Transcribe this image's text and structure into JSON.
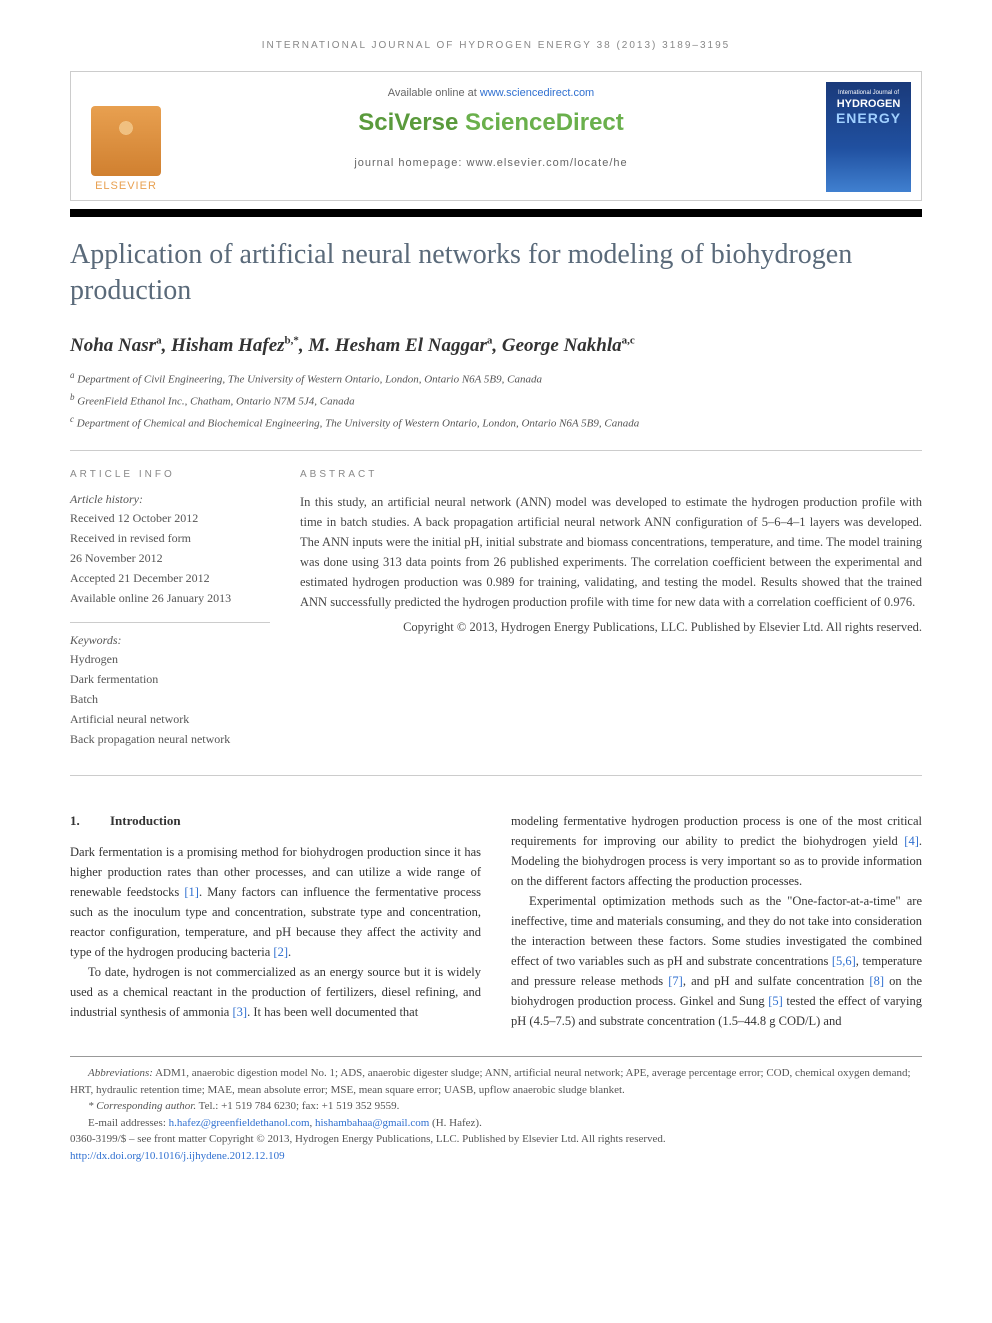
{
  "running_head": "INTERNATIONAL JOURNAL OF HYDROGEN ENERGY 38 (2013) 3189–3195",
  "header": {
    "available": "Available online at ",
    "available_link": "www.sciencedirect.com",
    "sciverse1": "SciVerse ",
    "sciverse2": "ScienceDirect",
    "homepage": "journal homepage: www.elsevier.com/locate/he",
    "elsevier": "ELSEVIER",
    "cover_line1": "International Journal of",
    "cover_line2": "HYDROGEN",
    "cover_line3": "ENERGY"
  },
  "title": "Application of artificial neural networks for modeling of biohydrogen production",
  "authors": {
    "a1_name": "Noha Nasr",
    "a1_sup": "a",
    "a2_name": "Hisham Hafez",
    "a2_sup": "b,*",
    "a3_name": "M. Hesham El Naggar",
    "a3_sup": "a",
    "a4_name": "George Nakhla",
    "a4_sup": "a,c"
  },
  "affiliations": {
    "aff1_sup": "a",
    "aff1": "Department of Civil Engineering, The University of Western Ontario, London, Ontario N6A 5B9, Canada",
    "aff2_sup": "b",
    "aff2": "GreenField Ethanol Inc., Chatham, Ontario N7M 5J4, Canada",
    "aff3_sup": "c",
    "aff3": "Department of Chemical and Biochemical Engineering, The University of Western Ontario, London, Ontario N6A 5B9, Canada"
  },
  "info": {
    "heading": "ARTICLE INFO",
    "history_label": "Article history:",
    "received": "Received 12 October 2012",
    "revised1": "Received in revised form",
    "revised2": "26 November 2012",
    "accepted": "Accepted 21 December 2012",
    "online": "Available online 26 January 2013",
    "keywords_label": "Keywords:",
    "kw1": "Hydrogen",
    "kw2": "Dark fermentation",
    "kw3": "Batch",
    "kw4": "Artificial neural network",
    "kw5": "Back propagation neural network"
  },
  "abstract": {
    "heading": "ABSTRACT",
    "text": "In this study, an artificial neural network (ANN) model was developed to estimate the hydrogen production profile with time in batch studies. A back propagation artificial neural network ANN configuration of 5–6–4–1 layers was developed. The ANN inputs were the initial pH, initial substrate and biomass concentrations, temperature, and time. The model training was done using 313 data points from 26 published experiments. The correlation coefficient between the experimental and estimated hydrogen production was 0.989 for training, validating, and testing the model. Results showed that the trained ANN successfully predicted the hydrogen production profile with time for new data with a correlation coefficient of 0.976.",
    "copyright": "Copyright © 2013, Hydrogen Energy Publications, LLC. Published by Elsevier Ltd. All rights reserved."
  },
  "body": {
    "heading_num": "1.",
    "heading_text": "Introduction",
    "p1a": "Dark fermentation is a promising method for biohydrogen production since it has higher production rates than other processes, and can utilize a wide range of renewable feedstocks ",
    "ref1": "[1]",
    "p1b": ". Many factors can influence the fermentative process such as the inoculum type and concentration, substrate type and concentration, reactor configuration, temperature, and pH because they affect the activity and type of the hydrogen producing bacteria ",
    "ref2": "[2]",
    "p1c": ".",
    "p2a": "To date, hydrogen is not commercialized as an energy source but it is widely used as a chemical reactant in the production of fertilizers, diesel refining, and industrial synthesis of ammonia ",
    "ref3": "[3]",
    "p2b": ". It has been well documented that",
    "p3a": "modeling fermentative hydrogen production process is one of the most critical requirements for improving our ability to predict the biohydrogen yield ",
    "ref4": "[4]",
    "p3b": ". Modeling the biohydrogen process is very important so as to provide information on the different factors affecting the production processes.",
    "p4a": "Experimental optimization methods such as the \"One-factor-at-a-time\" are ineffective, time and materials consuming, and they do not take into consideration the interaction between these factors. Some studies investigated the combined effect of two variables such as pH and substrate concentrations ",
    "ref56": "[5,6]",
    "p4b": ", temperature and pressure release methods ",
    "ref7": "[7]",
    "p4c": ", and pH and sulfate concentration ",
    "ref8": "[8]",
    "p4d": " on the biohydrogen production process. Ginkel and Sung ",
    "ref5": "[5]",
    "p4e": " tested the effect of varying pH (4.5–7.5) and substrate concentration (1.5–44.8 g COD/L) and"
  },
  "footnotes": {
    "abbrev_label": "Abbreviations:",
    "abbrev": " ADM1, anaerobic digestion model No. 1; ADS, anaerobic digester sludge; ANN, artificial neural network; APE, average percentage error; COD, chemical oxygen demand; HRT, hydraulic retention time; MAE, mean absolute error; MSE, mean square error; UASB, upflow anaerobic sludge blanket.",
    "corr_label": "* Corresponding author.",
    "corr": " Tel.: +1 519 784 6230; fax: +1 519 352 9559.",
    "email_label": "E-mail addresses: ",
    "email1": "h.hafez@greenfieldethanol.com",
    "email_sep": ", ",
    "email2": "hishambahaa@gmail.com",
    "email_suffix": " (H. Hafez).",
    "copyright_line": "0360-3199/$ – see front matter Copyright © 2013, Hydrogen Energy Publications, LLC. Published by Elsevier Ltd. All rights reserved.",
    "doi": "http://dx.doi.org/10.1016/j.ijhydene.2012.12.109"
  }
}
